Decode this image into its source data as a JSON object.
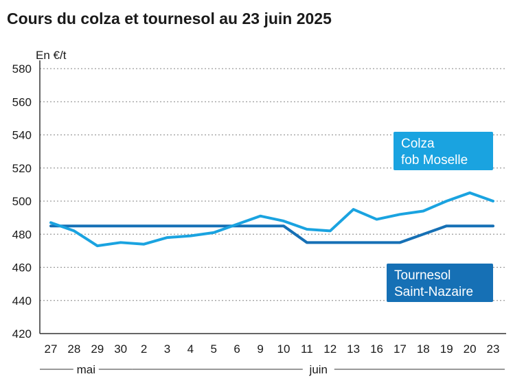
{
  "chart_data": {
    "type": "line",
    "title": "Cours du colza et tournesol au 23 juin 2025",
    "ylabel": "En €/t",
    "ylim": [
      420,
      580
    ],
    "yticks": [
      420,
      440,
      460,
      480,
      500,
      520,
      540,
      560,
      580
    ],
    "grid": true,
    "categories": [
      "27",
      "28",
      "29",
      "30",
      "2",
      "3",
      "4",
      "5",
      "6",
      "9",
      "10",
      "11",
      "12",
      "13",
      "16",
      "17",
      "18",
      "19",
      "20",
      "23"
    ],
    "months": [
      {
        "label": "mai",
        "from": 0,
        "to": 3
      },
      {
        "label": "juin",
        "from": 4,
        "to": 19
      }
    ],
    "series": [
      {
        "name": "Colza\nfob Moselle",
        "label_lines": [
          "Colza",
          "fob Moselle"
        ],
        "color": "#1aa3e0",
        "values": [
          487,
          482,
          473,
          475,
          474,
          478,
          479,
          481,
          486,
          491,
          488,
          483,
          482,
          495,
          489,
          492,
          494,
          500,
          505,
          500
        ]
      },
      {
        "name": "Tournesol\nSaint-Nazaire",
        "label_lines": [
          "Tournesol",
          "Saint-Nazaire"
        ],
        "color": "#1670b5",
        "values": [
          485,
          485,
          485,
          485,
          485,
          485,
          485,
          485,
          485,
          485,
          485,
          475,
          475,
          475,
          475,
          475,
          480,
          485,
          485,
          485
        ]
      }
    ]
  }
}
